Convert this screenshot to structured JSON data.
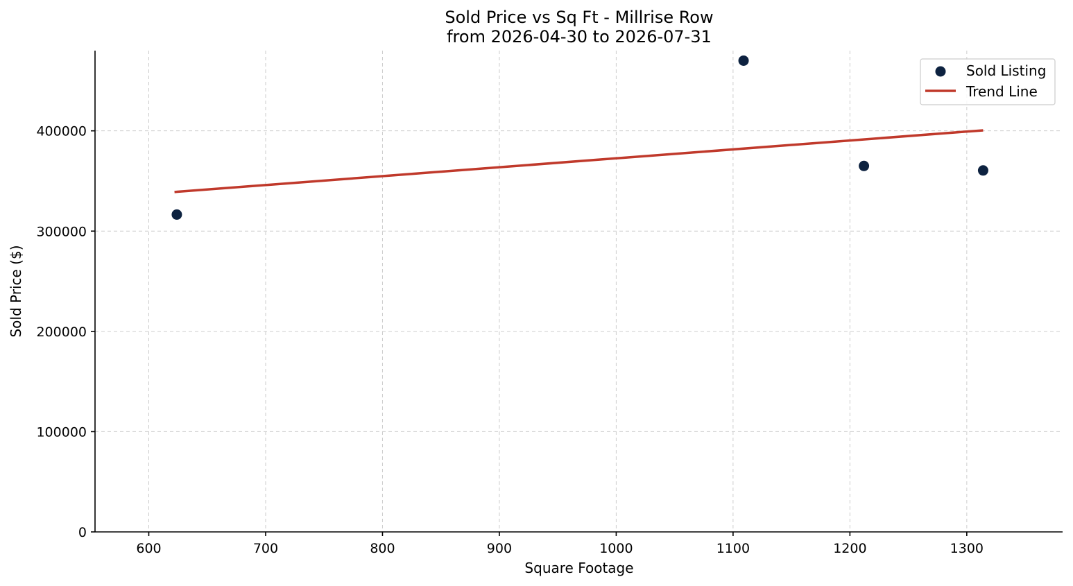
{
  "chart_data": {
    "type": "scatter",
    "title": "Sold Price vs Sq Ft - Millrise Row",
    "subtitle": "from 2026-04-30 to 2026-07-31",
    "xlabel": "Square Footage",
    "ylabel": "Sold Price ($)",
    "xlim": [
      554,
      1382
    ],
    "ylim": [
      0,
      480000
    ],
    "xticks": [
      600,
      700,
      800,
      900,
      1000,
      1100,
      1200,
      1300
    ],
    "yticks": [
      0,
      100000,
      200000,
      300000,
      400000
    ],
    "grid": true,
    "legend_position": "top-right",
    "series": [
      {
        "name": "Sold Listing",
        "kind": "scatter",
        "color": "#0d2240",
        "points": [
          {
            "x": 624,
            "y": 316500
          },
          {
            "x": 1109,
            "y": 470000
          },
          {
            "x": 1212,
            "y": 365000
          },
          {
            "x": 1314,
            "y": 360500
          }
        ]
      },
      {
        "name": "Trend Line",
        "kind": "line",
        "color": "#c0392b",
        "points": [
          {
            "x": 622,
            "y": 339000
          },
          {
            "x": 1314,
            "y": 400500
          }
        ]
      }
    ]
  }
}
